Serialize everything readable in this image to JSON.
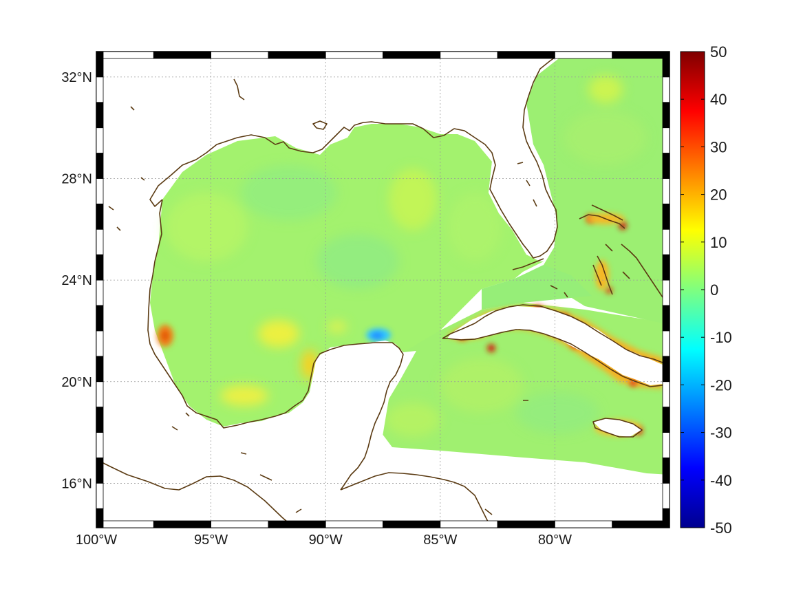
{
  "map": {
    "lon_range": [
      -100,
      -75
    ],
    "lat_range": [
      14.25,
      33
    ],
    "x_ticks": [
      {
        "value": -100,
        "label": "100°W"
      },
      {
        "value": -95,
        "label": "95°W"
      },
      {
        "value": -90,
        "label": "90°W"
      },
      {
        "value": -85,
        "label": "85°W"
      },
      {
        "value": -80,
        "label": "80°W"
      }
    ],
    "y_ticks": [
      {
        "value": 32,
        "label": "32°N"
      },
      {
        "value": 28,
        "label": "28°N"
      },
      {
        "value": 24,
        "label": "24°N"
      },
      {
        "value": 20,
        "label": "20°N"
      },
      {
        "value": 16,
        "label": "16°N"
      }
    ],
    "grid": true,
    "colormap": "jet",
    "coastline_color": "#5a3a12"
  },
  "colorbar": {
    "range": [
      -50,
      50
    ],
    "ticks": [
      {
        "value": 50,
        "label": "50"
      },
      {
        "value": 40,
        "label": "40"
      },
      {
        "value": 30,
        "label": "30"
      },
      {
        "value": 20,
        "label": "20"
      },
      {
        "value": 10,
        "label": "10"
      },
      {
        "value": 0,
        "label": "0"
      },
      {
        "value": -10,
        "label": "-10"
      },
      {
        "value": -20,
        "label": "-20"
      },
      {
        "value": -30,
        "label": "-30"
      },
      {
        "value": -40,
        "label": "-40"
      },
      {
        "value": -50,
        "label": "-50"
      }
    ]
  }
}
